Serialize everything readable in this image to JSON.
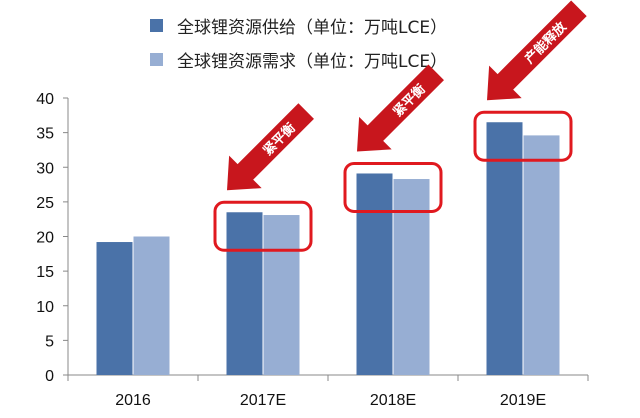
{
  "chart_data": {
    "type": "bar",
    "categories": [
      "2016",
      "2017E",
      "2018E",
      "2019E"
    ],
    "series": [
      {
        "name": "全球锂资源供给（单位：万吨LCE）",
        "values": [
          19.2,
          23.5,
          29.1,
          36.5
        ],
        "color": "#4a72a8"
      },
      {
        "name": "全球锂资源需求（单位：万吨LCE）",
        "values": [
          20.0,
          23.1,
          28.3,
          34.6
        ],
        "color": "#97aed3"
      }
    ],
    "ylim": [
      0,
      40
    ],
    "yticks": [
      "0",
      "5",
      "10",
      "15",
      "20",
      "25",
      "30",
      "35",
      "40"
    ],
    "grid": false,
    "legend_position": "top",
    "annotations": [
      {
        "category": "2017E",
        "text": "紧平衡"
      },
      {
        "category": "2018E",
        "text": "紧平衡"
      },
      {
        "category": "2019E",
        "text": "产能释放"
      }
    ],
    "highlight_color": "#e0191f",
    "arrow_color": "#c8161d"
  }
}
